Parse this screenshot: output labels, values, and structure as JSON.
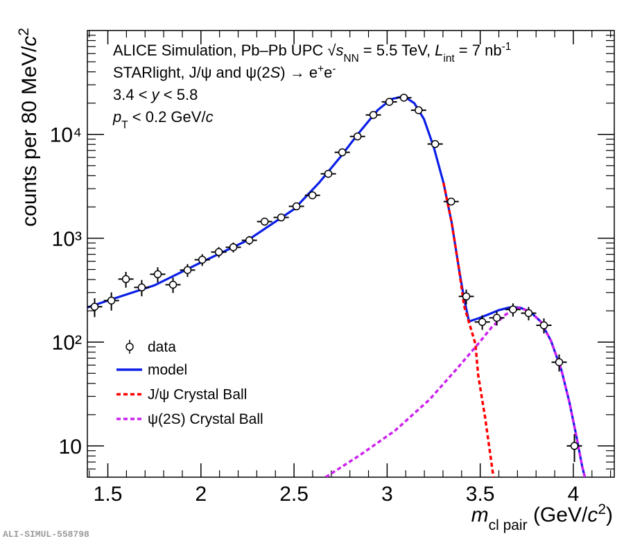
{
  "chart_data": {
    "type": "line",
    "log_y": true,
    "xlim": [
      1.39,
      4.22
    ],
    "ylim": [
      5,
      100000
    ],
    "xticks": [
      1.5,
      2,
      2.5,
      3,
      3.5,
      4
    ],
    "xminorticks": [
      1.4,
      1.6,
      1.7,
      1.8,
      1.9,
      2.1,
      2.2,
      2.3,
      2.4,
      2.6,
      2.7,
      2.8,
      2.9,
      3.1,
      3.2,
      3.3,
      3.4,
      3.6,
      3.7,
      3.8,
      3.9,
      4.1,
      4.2
    ],
    "yticks": [
      10,
      {
        "value": 100,
        "label": "10²"
      },
      {
        "value": 1000,
        "label": "10³"
      },
      {
        "value": 10000,
        "label": "10⁴"
      }
    ],
    "yminorticks": [
      6,
      7,
      8,
      9,
      20,
      30,
      40,
      50,
      60,
      70,
      80,
      90,
      200,
      300,
      400,
      500,
      600,
      700,
      800,
      900,
      2000,
      3000,
      4000,
      5000,
      6000,
      7000,
      8000,
      9000,
      20000,
      30000,
      40000,
      50000,
      60000,
      70000,
      80000,
      90000
    ],
    "ylabel": [
      {
        "text": "counts per 80 MeV/"
      },
      {
        "text": "c",
        "style": "italic"
      },
      {
        "text": "2",
        "style": "sup"
      }
    ],
    "xlabel": [
      {
        "text": "m",
        "style": "italic"
      },
      {
        "text": "cl pair",
        "style": "sub"
      },
      {
        "text": " (GeV/"
      },
      {
        "text": "c",
        "style": "italic"
      },
      {
        "text": "2",
        "style": "sup"
      },
      {
        "text": ")"
      }
    ],
    "annotations": [
      [
        {
          "text": "ALICE Simulation, Pb–Pb UPC "
        },
        {
          "text": "√"
        },
        {
          "text": "s",
          "style": "italic"
        },
        {
          "text": "NN",
          "style": "sub"
        },
        {
          "text": " = 5.5 TeV, "
        },
        {
          "text": "L",
          "style": "italic"
        },
        {
          "text": "int",
          "style": "sub"
        },
        {
          "text": " = 7 nb"
        },
        {
          "text": "-1",
          "style": "sup"
        }
      ],
      [
        {
          "text": "STARlight, J/ψ and ψ(2"
        },
        {
          "text": "S",
          "style": "italic"
        },
        {
          "text": ") → e"
        },
        {
          "text": "+",
          "style": "sup"
        },
        {
          "text": "e"
        },
        {
          "text": "-",
          "style": "sup"
        }
      ],
      [
        {
          "text": "3.4 < "
        },
        {
          "text": "y",
          "style": "italic"
        },
        {
          "text": " < 5.8"
        }
      ],
      [
        {
          "text": "p",
          "style": "italic"
        },
        {
          "text": "T",
          "style": "sub"
        },
        {
          "text": " < 0.2 GeV/"
        },
        {
          "text": "c",
          "style": "italic"
        }
      ]
    ],
    "points": {
      "name": "data",
      "color": "#000000",
      "x": [
        1.429,
        1.519,
        1.597,
        1.682,
        1.768,
        1.85,
        1.928,
        2.007,
        2.096,
        2.174,
        2.26,
        2.342,
        2.431,
        2.513,
        2.599,
        2.684,
        2.759,
        2.841,
        2.926,
        3.012,
        3.09,
        3.169,
        3.258,
        3.344,
        3.425,
        3.511,
        3.589,
        3.676,
        3.76,
        3.842,
        3.924,
        4.006
      ],
      "values": [
        219,
        251,
        404,
        336,
        450,
        357,
        494,
        621,
        736,
        819,
        955,
        1445,
        1585,
        2027,
        2590,
        4170,
        6710,
        9550,
        15380,
        20560,
        22550,
        17100,
        8070,
        2255,
        275,
        156,
        171,
        206,
        190,
        145,
        64,
        10
      ],
      "errors": [
        45,
        50,
        70,
        60,
        75,
        60,
        70,
        80,
        85,
        90,
        95,
        120,
        125,
        140,
        160,
        200,
        260,
        310,
        390,
        450,
        470,
        410,
        280,
        150,
        45,
        25,
        27,
        30,
        28,
        24,
        12,
        3
      ]
    },
    "series": [
      {
        "name": "model",
        "color": "#0a1ee6",
        "dash": "solid",
        "x": [
          1.388,
          1.5,
          1.75,
          2.0,
          2.25,
          2.5,
          2.634,
          2.748,
          2.848,
          2.949,
          3.023,
          3.09,
          3.146,
          3.198,
          3.25,
          3.303,
          3.347,
          3.385,
          3.414,
          3.44,
          3.489,
          3.545,
          3.6,
          3.656,
          3.712,
          3.768,
          3.824,
          3.88,
          3.936,
          3.98,
          4.018,
          4.048,
          4.062
        ],
        "values": [
          215,
          251,
          352,
          584,
          955,
          1905,
          3415,
          6030,
          10310,
          17100,
          21880,
          23270,
          19950,
          14030,
          7590,
          3415,
          1400,
          517,
          259,
          158,
          169,
          185,
          203,
          215,
          215,
          196,
          158,
          103,
          54,
          26,
          12,
          6.3,
          5
        ]
      },
      {
        "name": "J/ψ Crystal Ball",
        "color": "#ff0000",
        "dash": "dashed",
        "x": [
          3.303,
          3.347,
          3.385,
          3.414,
          3.474,
          3.489,
          3.526,
          3.571
        ],
        "values": [
          3415,
          1400,
          517,
          222,
          96,
          48,
          19,
          5
        ]
      },
      {
        "name": "ψ(2S) Crystal Ball",
        "color": "#cc22ee",
        "dash": "dashed",
        "x": [
          2.67,
          2.856,
          3.042,
          3.228,
          3.377,
          3.489,
          3.563,
          3.638,
          3.712,
          3.768,
          3.824,
          3.88,
          3.936,
          3.98,
          4.018,
          4.048,
          4.062
        ],
        "values": [
          5,
          8.2,
          14,
          28,
          56,
          96,
          140,
          185,
          215,
          196,
          158,
          103,
          54,
          26,
          12,
          6.3,
          5
        ]
      }
    ],
    "legend": "left",
    "footer": "ALI-SIMUL-558798"
  }
}
